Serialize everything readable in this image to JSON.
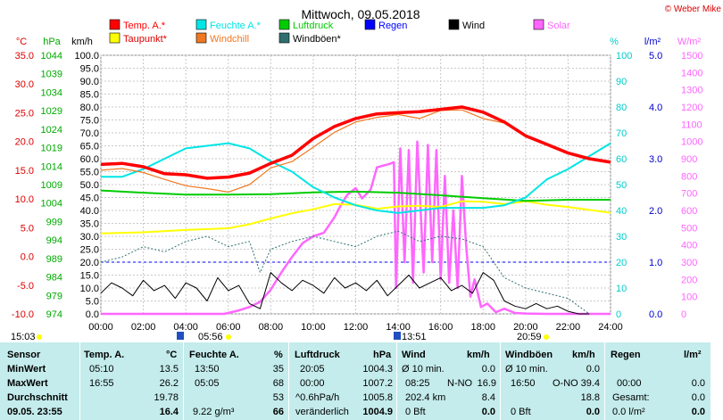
{
  "copyright": "© Weber Mike",
  "chart_data": {
    "type": "line",
    "title": "Mittwoch, 09.05.2018",
    "x_ticks": [
      "00:00",
      "02:00",
      "04:00",
      "06:00",
      "08:00",
      "10:00",
      "12:00",
      "14:00",
      "16:00",
      "18:00",
      "20:00",
      "22:00",
      "24:00"
    ],
    "x_range_hours": [
      0,
      24
    ],
    "grid": true,
    "axes": [
      {
        "name": "temperature",
        "unit": "°C",
        "range": [
          -10,
          35
        ],
        "ticks": [
          "35.0",
          "30.0",
          "25.0",
          "20.0",
          "15.0",
          "10.0",
          "5.0",
          "0.0",
          "-5.0",
          "-10.0"
        ]
      },
      {
        "name": "pressure",
        "unit": "hPa",
        "range": [
          974,
          1044
        ],
        "ticks": [
          "1044",
          "1039",
          "1034",
          "1029",
          "1024",
          "1019",
          "1014",
          "1009",
          "1004",
          "999",
          "994",
          "989",
          "984",
          "979",
          "974"
        ]
      },
      {
        "name": "wind",
        "unit": "km/h",
        "range": [
          0,
          100
        ],
        "ticks": [
          "100.0",
          "95.0",
          "90.0",
          "85.0",
          "80.0",
          "75.0",
          "70.0",
          "65.0",
          "60.0",
          "55.0",
          "50.0",
          "45.0",
          "40.0",
          "35.0",
          "30.0",
          "25.0",
          "20.0",
          "15.0",
          "10.0",
          "5.0",
          "0.0"
        ]
      },
      {
        "name": "humidity",
        "unit": "%",
        "range": [
          0,
          100
        ],
        "ticks": [
          "100",
          "90",
          "80",
          "70",
          "60",
          "50",
          "40",
          "30",
          "20",
          "10",
          "0"
        ]
      },
      {
        "name": "rain",
        "unit": "l/m²",
        "range": [
          0,
          5
        ],
        "ticks": [
          "5.0",
          "4.0",
          "3.0",
          "2.0",
          "1.0",
          "0.0"
        ]
      },
      {
        "name": "solar",
        "unit": "W/m²",
        "range": [
          0,
          1500
        ],
        "ticks": [
          "1500",
          "1400",
          "1300",
          "1200",
          "1100",
          "1000",
          "900",
          "800",
          "700",
          "600",
          "500",
          "400",
          "300",
          "200",
          "100",
          "0"
        ]
      }
    ],
    "legend": [
      {
        "name": "Temp. A.*",
        "color": "#ff0000"
      },
      {
        "name": "Feuchte A.*",
        "color": "#00e5e5"
      },
      {
        "name": "Luftdruck",
        "color": "#00cc00"
      },
      {
        "name": "Regen",
        "color": "#0000ff"
      },
      {
        "name": "Wind",
        "color": "#000000"
      },
      {
        "name": "Solar",
        "color": "#ff66ff"
      },
      {
        "name": "Taupunkt*",
        "color": "#ffff00"
      },
      {
        "name": "Windchill",
        "color": "#f07820"
      },
      {
        "name": "Windböen*",
        "color": "#2f6f6f"
      }
    ],
    "series": [
      {
        "name": "Temp. A.*",
        "axis": "temperature",
        "color": "#ff0000",
        "x": [
          0,
          1,
          2,
          3,
          4,
          5,
          6,
          7,
          8,
          9,
          10,
          11,
          12,
          13,
          14,
          15,
          16,
          17,
          18,
          19,
          20,
          21,
          22,
          23,
          24
        ],
        "y": [
          16.0,
          16.2,
          15.6,
          14.4,
          14.2,
          13.6,
          13.8,
          14.5,
          16.2,
          17.6,
          20.5,
          22.6,
          24.0,
          24.8,
          25.0,
          25.2,
          25.6,
          26.0,
          25.1,
          23.4,
          21.0,
          19.5,
          18.0,
          17.0,
          16.4
        ]
      },
      {
        "name": "Windchill",
        "axis": "temperature",
        "color": "#f07820",
        "x": [
          0,
          1,
          2,
          3,
          4,
          5,
          6,
          7,
          8,
          9,
          10,
          11,
          12,
          13,
          14,
          15,
          16,
          17,
          18,
          19,
          20,
          21,
          22,
          23,
          24
        ],
        "y": [
          15.0,
          15.3,
          14.6,
          13.4,
          12.3,
          11.8,
          11.2,
          12.5,
          15.4,
          16.5,
          19.0,
          21.6,
          23.4,
          24.2,
          24.7,
          24.0,
          25.4,
          25.5,
          24.0,
          23.2,
          20.8,
          19.4,
          18.0,
          17.0,
          16.4
        ]
      },
      {
        "name": "Feuchte A.*",
        "axis": "humidity",
        "color": "#00e5e5",
        "x": [
          0,
          1,
          2,
          3,
          4,
          5,
          6,
          7,
          8,
          9,
          10,
          11,
          12,
          13,
          14,
          15,
          16,
          17,
          18,
          19,
          20,
          21,
          22,
          23,
          24
        ],
        "y": [
          53,
          53,
          56,
          60,
          64,
          65,
          66,
          64,
          59,
          55,
          49,
          45,
          42,
          40,
          39,
          40,
          41,
          41,
          41,
          42,
          45,
          52,
          56,
          61,
          66
        ]
      },
      {
        "name": "Taupunkt*",
        "axis": "temperature",
        "color": "#ffff00",
        "x": [
          0,
          2,
          4,
          6,
          7,
          8,
          9,
          10,
          11,
          12,
          13,
          14,
          15,
          16,
          17,
          18,
          19,
          20,
          21,
          22,
          23,
          24
        ],
        "y": [
          4.0,
          4.2,
          4.6,
          4.9,
          5.6,
          6.6,
          7.5,
          8.2,
          9.1,
          9.0,
          8.3,
          8.7,
          8.8,
          8.6,
          9.6,
          9.5,
          9.1,
          9.6,
          9.0,
          8.6,
          8.1,
          7.6
        ]
      },
      {
        "name": "Luftdruck",
        "axis": "pressure",
        "color": "#00cc00",
        "x": [
          0,
          2,
          4,
          6,
          8,
          10,
          12,
          14,
          16,
          18,
          20,
          22,
          24
        ],
        "y": [
          1007.4,
          1006.8,
          1006.3,
          1006.3,
          1006.4,
          1006.9,
          1007.1,
          1006.8,
          1006.1,
          1005.3,
          1004.6,
          1004.9,
          1004.9
        ]
      },
      {
        "name": "Wind",
        "axis": "wind",
        "color": "#000000",
        "x": [
          0,
          0.5,
          1,
          1.5,
          2,
          2.5,
          3,
          3.5,
          4,
          4.5,
          5,
          5.5,
          6,
          6.5,
          7,
          7.5,
          8,
          8.5,
          9,
          9.5,
          10,
          10.5,
          11,
          11.5,
          12,
          12.5,
          13,
          13.5,
          14,
          14.5,
          15,
          15.5,
          16,
          16.5,
          17,
          17.5,
          18,
          18.5,
          19,
          19.5,
          20,
          20.5,
          21,
          21.5,
          22,
          22.5,
          23
        ],
        "y": [
          8,
          12,
          10,
          7,
          13,
          9,
          11,
          6,
          12,
          10,
          5,
          14,
          9,
          11,
          4,
          2,
          16,
          12,
          9,
          13,
          11,
          8,
          14,
          10,
          12,
          9,
          13,
          7,
          11,
          15,
          10,
          12,
          14,
          9,
          11,
          8,
          16,
          13,
          5,
          3,
          2,
          4,
          2,
          3,
          1,
          0,
          0
        ]
      },
      {
        "name": "Windböen*",
        "axis": "wind",
        "color": "#2f6f6f",
        "x": [
          0,
          1,
          2,
          3,
          4,
          5,
          6,
          7,
          7.5,
          8,
          9,
          10,
          11,
          12,
          13,
          14,
          15,
          16,
          17,
          18,
          19,
          20,
          21,
          22,
          22.5,
          23
        ],
        "y": [
          20,
          22,
          26,
          24,
          28,
          30,
          26,
          28,
          16,
          25,
          28,
          30,
          28,
          26,
          30,
          32,
          28,
          30,
          29,
          26,
          14,
          10,
          8,
          6,
          3,
          0
        ]
      },
      {
        "name": "Solar",
        "axis": "solar",
        "color": "#ff66ff",
        "x": [
          0,
          5.8,
          6.5,
          7,
          7.5,
          8,
          8.5,
          9,
          9.5,
          10,
          10.5,
          11,
          11.3,
          11.6,
          12,
          12.3,
          12.7,
          13,
          13.3,
          13.6,
          13.8,
          13.9,
          14.1,
          14.3,
          14.5,
          14.7,
          14.9,
          15.2,
          15.4,
          15.6,
          15.8,
          16,
          16.2,
          16.4,
          16.6,
          16.8,
          17,
          17.2,
          17.4,
          17.6,
          17.9,
          18.2,
          18.6,
          19,
          19.5,
          20,
          20.98,
          24
        ],
        "y": [
          0,
          0,
          20,
          40,
          70,
          140,
          240,
          330,
          410,
          450,
          470,
          560,
          630,
          690,
          730,
          670,
          720,
          850,
          860,
          870,
          880,
          150,
          960,
          300,
          950,
          180,
          1000,
          240,
          980,
          300,
          950,
          200,
          800,
          180,
          600,
          150,
          800,
          400,
          100,
          200,
          40,
          60,
          10,
          30,
          5,
          2,
          0,
          0
        ]
      }
    ],
    "rain_reference_y": 1.0,
    "annotations": {
      "sunrise": "05:56",
      "sunset": "20:59",
      "solar_noon": "13:51",
      "day_length": "15:03"
    }
  },
  "table": {
    "headers": {
      "sensor": "Sensor",
      "temp": "Temp. A.",
      "temp_unit": "°C",
      "hum": "Feuchte A.",
      "hum_unit": "%",
      "press": "Luftdruck",
      "press_unit": "hPa",
      "wind": "Wind",
      "wind_unit": "km/h",
      "gust": "Windböen",
      "gust_unit": "km/h",
      "rain": "Regen",
      "rain_unit": "l/m²"
    },
    "rows": {
      "min": {
        "label": "MinWert",
        "temp_time": "05:10",
        "temp_val": "13.5",
        "hum_time": "13:50",
        "hum_val": "35",
        "press_time": "20:05",
        "press_val": "1004.3",
        "wind_label": "Ø 10 min.",
        "wind_val": "0.0",
        "gust_label": "Ø 10 min.",
        "gust_val": "0.0"
      },
      "max": {
        "label": "MaxWert",
        "temp_time": "16:55",
        "temp_val": "26.2",
        "hum_time": "05:05",
        "hum_val": "68",
        "press_time": "00:00",
        "press_val": "1007.2",
        "wind_time": "08:25",
        "wind_dir": "N-NO",
        "wind_val": "16.9",
        "gust_time": "16:50",
        "gust_dir": "O-NO",
        "gust_val": "39.4",
        "rain_time": "00:00",
        "rain_val": "0.0"
      },
      "avg": {
        "label": "Durchschnitt",
        "temp_val": "19.78",
        "hum_val": "53",
        "press_label": "^0.6hPa/h",
        "press_val": "1005.8",
        "wind_label": "202.4 km",
        "wind_val": "8.4",
        "gust_val": "18.8",
        "rain_label": "Gesamt:",
        "rain_val": "0.0"
      },
      "cur": {
        "label": "09.05. 23:55",
        "temp_val": "16.4",
        "hum_label": "9.22 g/m³",
        "hum_val": "66",
        "press_label": "veränderlich",
        "press_val": "1004.9",
        "wind_label": "0 Bft",
        "wind_val": "0.0",
        "gust_label": "0 Bft",
        "gust_val": "0.0",
        "rain_label": "0.0 l/m²",
        "rain_val": "0.0"
      }
    }
  }
}
